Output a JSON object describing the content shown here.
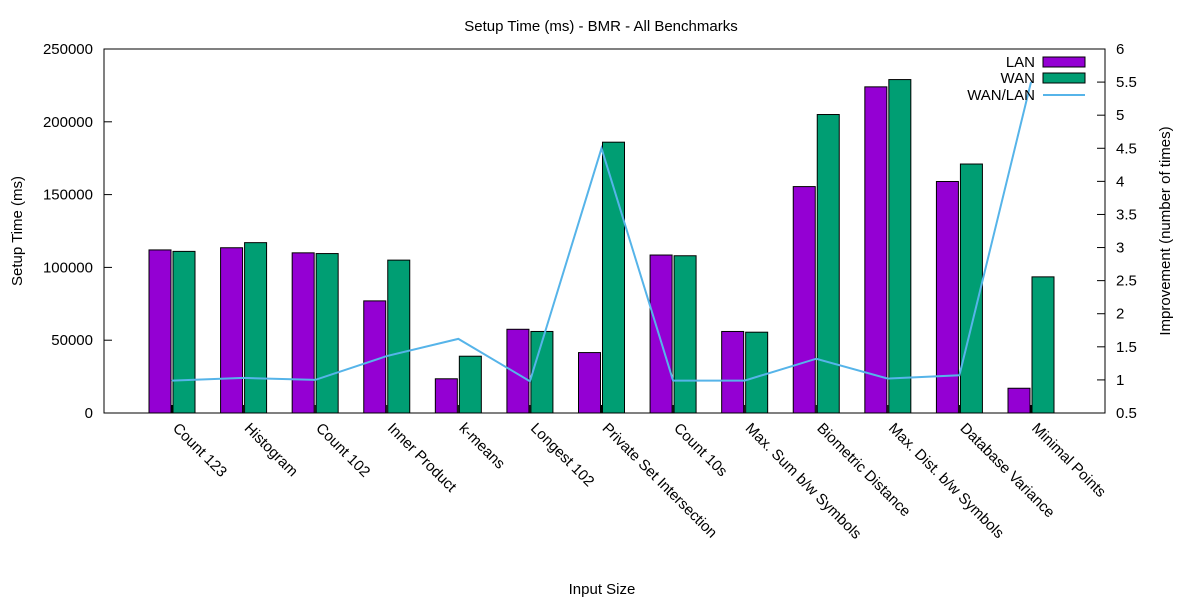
{
  "chart_data": {
    "type": "bar",
    "title": "Setup Time (ms) - BMR - All Benchmarks",
    "xlabel": "Input Size",
    "ylabel": "Setup Time (ms)",
    "y2label": "Improvement (number of times)",
    "ylim": [
      0,
      250000
    ],
    "y2lim": [
      0.5,
      6
    ],
    "yticks": [
      "0",
      "50000",
      "100000",
      "150000",
      "200000",
      "250000"
    ],
    "y2ticks": [
      "0.5",
      "1",
      "1.5",
      "2",
      "2.5",
      "3",
      "3.5",
      "4",
      "4.5",
      "5",
      "5.5",
      "6"
    ],
    "categories": [
      "Count 123",
      "Histogram",
      "Count 102",
      "Inner Product",
      "k-means",
      "Longest 102",
      "Private Set Intersection",
      "Count 10s",
      "Max. Sum b/w Symbols",
      "Biometric Distance",
      "Max. Dist. b/w Symbols",
      "Database Variance",
      "Minimal Points"
    ],
    "series": [
      {
        "name": "LAN",
        "color": "#9400d3",
        "axis": "y",
        "kind": "bar",
        "values": [
          112000,
          113500,
          110000,
          77000,
          23500,
          57500,
          41500,
          108500,
          56000,
          155500,
          224000,
          159000,
          17000
        ]
      },
      {
        "name": "WAN",
        "color": "#009e73",
        "axis": "y",
        "kind": "bar",
        "values": [
          111000,
          117000,
          109500,
          105000,
          39000,
          56000,
          186000,
          108000,
          55500,
          205000,
          229000,
          171000,
          93500
        ]
      },
      {
        "name": "WAN/LAN",
        "color": "#56b4e9",
        "axis": "y2",
        "kind": "line",
        "values": [
          0.99,
          1.03,
          1.0,
          1.36,
          1.62,
          0.98,
          4.5,
          0.99,
          0.99,
          1.32,
          1.02,
          1.07,
          5.5
        ]
      }
    ],
    "legend": "top-right",
    "grid": false
  }
}
